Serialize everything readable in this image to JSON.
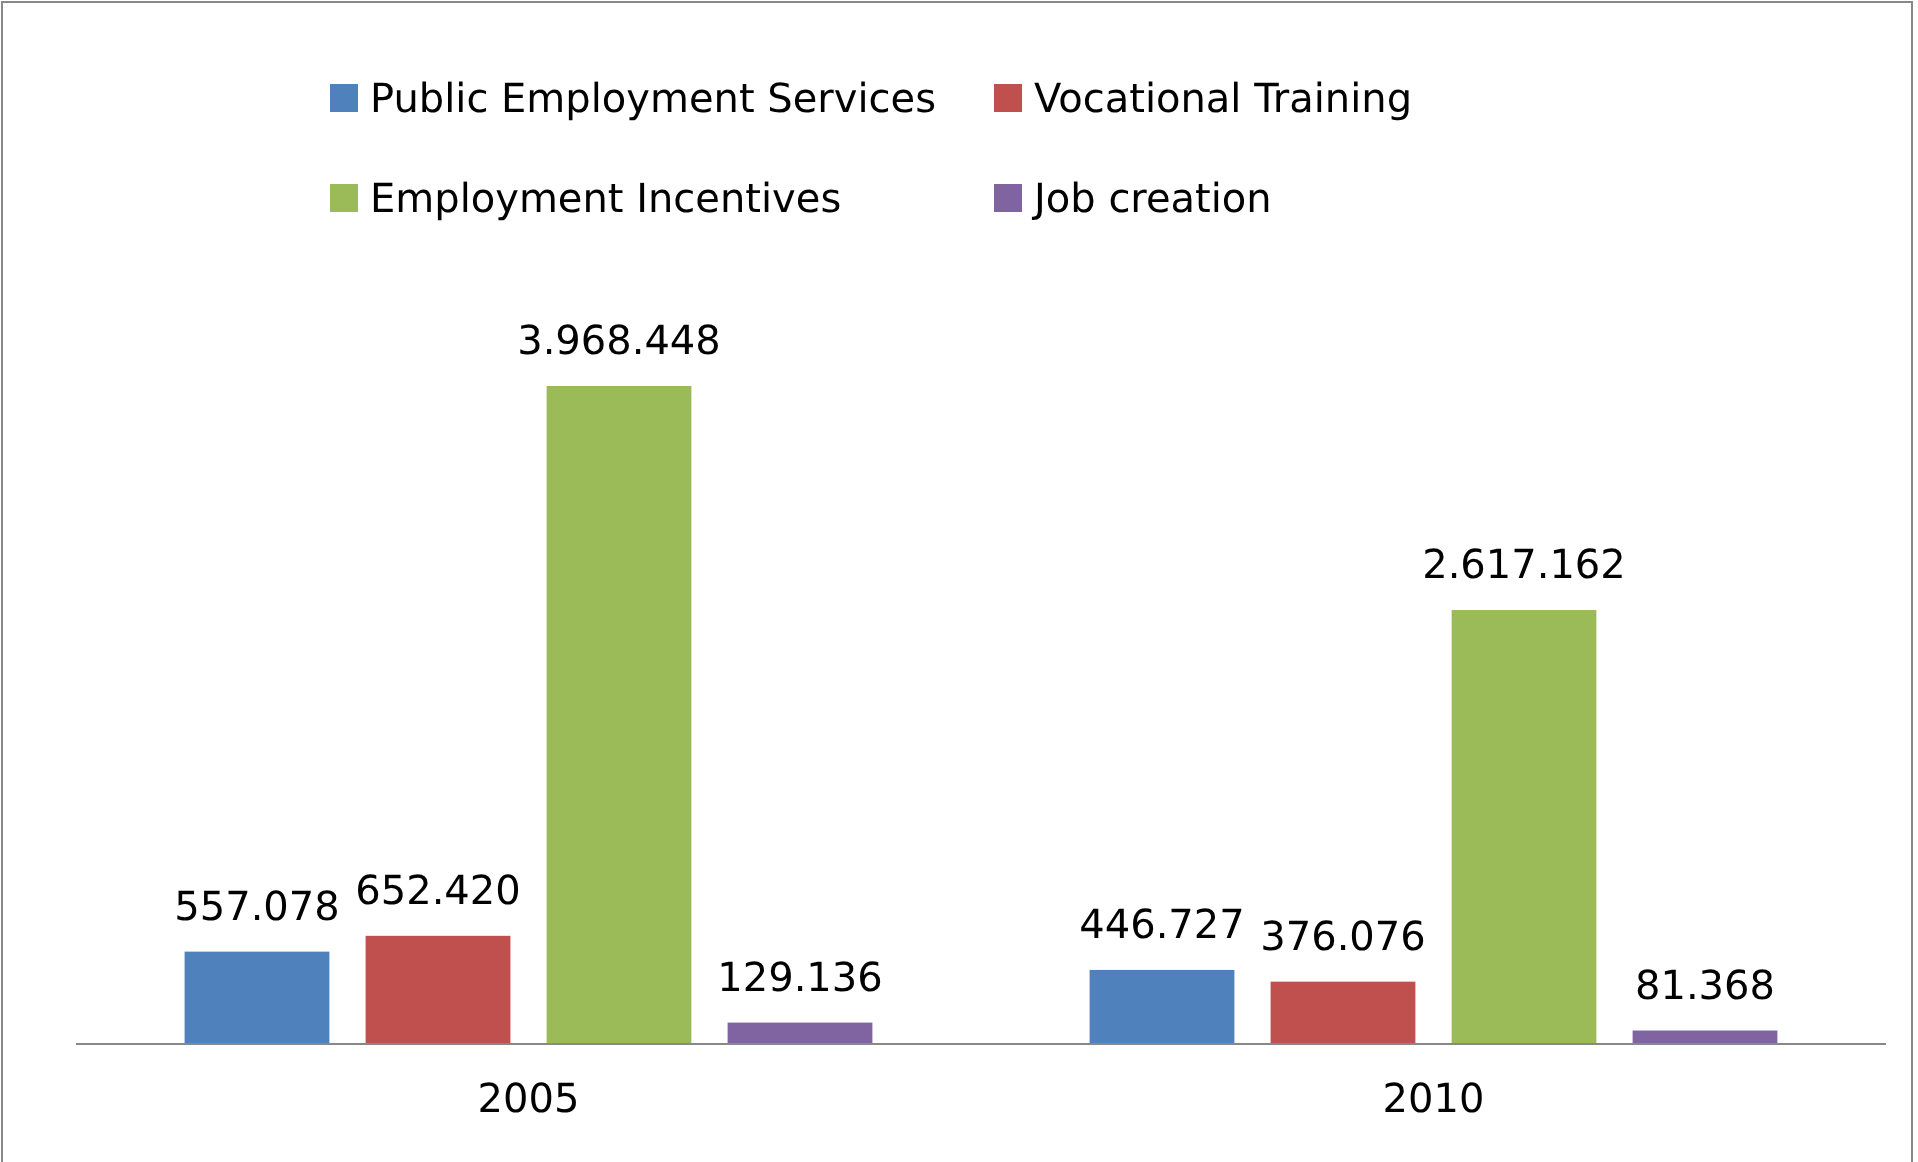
{
  "chart_data": {
    "type": "bar",
    "categories": [
      "2005",
      "2010"
    ],
    "series": [
      {
        "name": "Public Employment Services",
        "color": "#4f81bd",
        "values": [
          557078,
          446727
        ],
        "value_labels": [
          "557.078",
          "446.727"
        ]
      },
      {
        "name": "Vocational Training",
        "color": "#c0504d",
        "values": [
          652420,
          376076
        ],
        "value_labels": [
          "652.420",
          "376.076"
        ]
      },
      {
        "name": "Employment Incentives",
        "color": "#9bbb59",
        "values": [
          3968448,
          2617162
        ],
        "value_labels": [
          "3.968.448",
          "2.617.162"
        ]
      },
      {
        "name": "Job creation",
        "color": "#8064a2",
        "values": [
          129136,
          81368
        ],
        "value_labels": [
          "129.136",
          "81.368"
        ]
      }
    ],
    "legend": "top"
  }
}
